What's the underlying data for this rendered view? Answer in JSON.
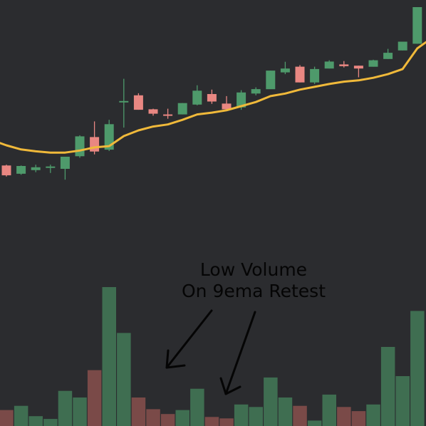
{
  "chart_data": {
    "type": "candlestick",
    "title": "",
    "xlabel": "",
    "ylabel": "",
    "grid": false,
    "legend": "none",
    "ylim": [
      0,
      100
    ],
    "volume_ylim": [
      0,
      100
    ],
    "colors": {
      "background": "#2b2c2f",
      "up_candle": "#4e9a6b",
      "down_candle": "#e98782",
      "ema": "#f0b93a",
      "up_volume": "#3f6e51",
      "down_volume": "#7a4a48",
      "annotation": "#050505"
    },
    "candles": [
      {
        "o": 38.6,
        "h": 38.9,
        "l": 34.3,
        "c": 34.8
      },
      {
        "o": 35.4,
        "h": 38.6,
        "l": 35.0,
        "c": 38.4
      },
      {
        "o": 36.8,
        "h": 38.9,
        "l": 36.0,
        "c": 37.9
      },
      {
        "o": 37.9,
        "h": 38.9,
        "l": 35.7,
        "c": 38.2
      },
      {
        "o": 37.3,
        "h": 42.0,
        "l": 33.1,
        "c": 42.0
      },
      {
        "o": 42.2,
        "h": 50.3,
        "l": 41.6,
        "c": 49.9
      },
      {
        "o": 49.6,
        "h": 55.7,
        "l": 42.9,
        "c": 44.0
      },
      {
        "o": 44.7,
        "h": 56.3,
        "l": 44.2,
        "c": 54.6
      },
      {
        "o": 63.6,
        "h": 72.2,
        "l": 53.3,
        "c": 63.6
      },
      {
        "o": 65.8,
        "h": 66.6,
        "l": 60.2,
        "c": 60.2
      },
      {
        "o": 60.4,
        "h": 60.6,
        "l": 57.9,
        "c": 58.7
      },
      {
        "o": 58.4,
        "h": 60.6,
        "l": 56.7,
        "c": 58.1
      },
      {
        "o": 58.4,
        "h": 62.8,
        "l": 58.4,
        "c": 62.8
      },
      {
        "o": 62.2,
        "h": 69.7,
        "l": 61.9,
        "c": 67.6
      },
      {
        "o": 66.3,
        "h": 68.0,
        "l": 62.5,
        "c": 63.4
      },
      {
        "o": 62.6,
        "h": 65.5,
        "l": 59.9,
        "c": 60.4
      },
      {
        "o": 61.1,
        "h": 67.8,
        "l": 60.2,
        "c": 66.9
      },
      {
        "o": 66.5,
        "h": 68.9,
        "l": 65.8,
        "c": 68.2
      },
      {
        "o": 68.2,
        "h": 75.4,
        "l": 68.2,
        "c": 75.4
      },
      {
        "o": 74.7,
        "h": 78.8,
        "l": 74.0,
        "c": 76.2
      },
      {
        "o": 76.9,
        "h": 77.5,
        "l": 70.8,
        "c": 70.8
      },
      {
        "o": 70.8,
        "h": 76.9,
        "l": 70.2,
        "c": 76.0
      },
      {
        "o": 76.2,
        "h": 79.4,
        "l": 76.2,
        "c": 78.9
      },
      {
        "o": 77.8,
        "h": 79.1,
        "l": 76.6,
        "c": 77.1
      },
      {
        "o": 77.3,
        "h": 77.3,
        "l": 72.8,
        "c": 76.2
      },
      {
        "o": 76.9,
        "h": 79.6,
        "l": 76.9,
        "c": 79.4
      },
      {
        "o": 79.9,
        "h": 83.8,
        "l": 79.9,
        "c": 82.3
      },
      {
        "o": 83.2,
        "h": 86.6,
        "l": 83.2,
        "c": 86.6
      },
      {
        "o": 85.8,
        "h": 100,
        "l": 85.8,
        "c": 100
      }
    ],
    "ema9": [
      46.4,
      44.8,
      44.1,
      43.6,
      43.6,
      44.4,
      45.6,
      46.1,
      50.0,
      52.2,
      53.7,
      54.5,
      56.3,
      58.4,
      59.1,
      60.0,
      61.6,
      63.2,
      65.5,
      66.5,
      68.0,
      69.1,
      70.2,
      71.1,
      71.6,
      72.6,
      74.0,
      76.0,
      84.0
    ],
    "volume": [
      11.5,
      14.5,
      7.1,
      5.1,
      25.3,
      20.5,
      40.2,
      100,
      67.0,
      20.5,
      12.1,
      8.6,
      11.5,
      26.8,
      6.5,
      5.5,
      15.5,
      13.7,
      34.9,
      20.5,
      14.5,
      3.9,
      22.6,
      13.7,
      10.7,
      15.5,
      56.9,
      35.9,
      82.8
    ]
  },
  "annotation": {
    "line1": "Low Volume",
    "line2": "On 9ema Retest"
  }
}
